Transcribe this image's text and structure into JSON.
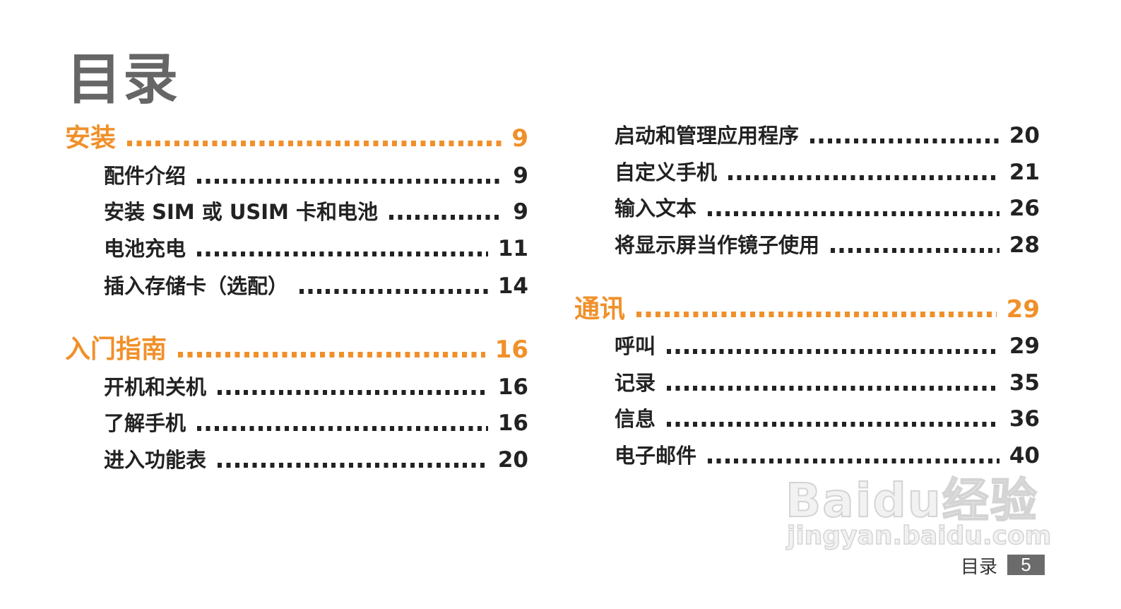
{
  "title": "目录",
  "left_column": [
    {
      "label": "安装",
      "page": "9",
      "level": "section"
    },
    {
      "label": "配件介绍",
      "page": "9",
      "level": "item"
    },
    {
      "label": "安装 SIM 或 USIM 卡和电池",
      "page": "9",
      "level": "item"
    },
    {
      "label": "电池充电",
      "page": "11",
      "level": "item"
    },
    {
      "label": "插入存储卡（选配）",
      "page": "14",
      "level": "item"
    },
    {
      "label": "入门指南",
      "page": "16",
      "level": "section"
    },
    {
      "label": "开机和关机",
      "page": "16",
      "level": "item"
    },
    {
      "label": "了解手机",
      "page": "16",
      "level": "item"
    },
    {
      "label": "进入功能表",
      "page": "20",
      "level": "item"
    }
  ],
  "right_column": [
    {
      "label": "启动和管理应用程序",
      "page": "20",
      "level": "item"
    },
    {
      "label": "自定义手机",
      "page": "21",
      "level": "item"
    },
    {
      "label": "输入文本",
      "page": "26",
      "level": "item"
    },
    {
      "label": "将显示屏当作镜子使用",
      "page": "28",
      "level": "item"
    },
    {
      "label": "通讯",
      "page": "29",
      "level": "section"
    },
    {
      "label": "呼叫",
      "page": "29",
      "level": "item"
    },
    {
      "label": "记录",
      "page": "35",
      "level": "item"
    },
    {
      "label": "信息",
      "page": "36",
      "level": "item"
    },
    {
      "label": "电子邮件",
      "page": "40",
      "level": "item"
    }
  ],
  "watermark": {
    "logo": "Baidu经验",
    "url": "jingyan.baidu.com"
  },
  "footer": {
    "section_label": "目录",
    "page_number": "5"
  },
  "colors": {
    "section": "#f0902a",
    "title": "#666666",
    "text": "#222222",
    "page_box": "#6b6b6b"
  }
}
